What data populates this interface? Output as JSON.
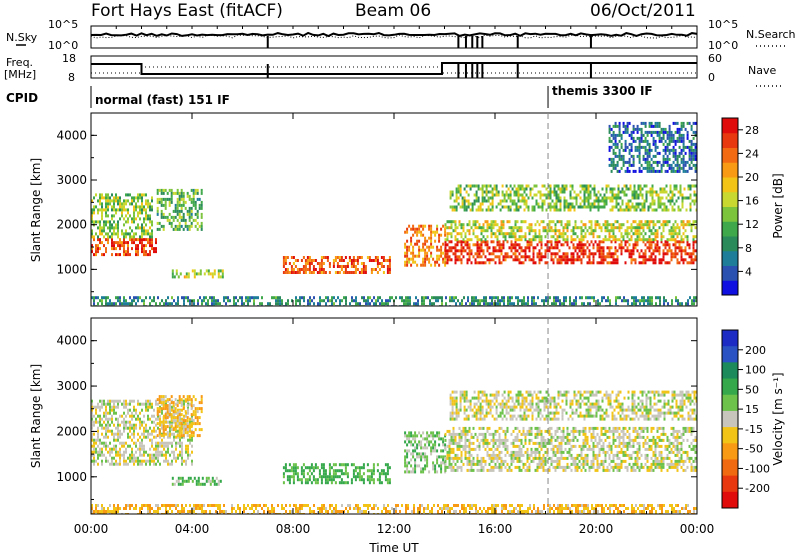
{
  "header": {
    "station": "Fort Hays East (fitACF)",
    "beam": "Beam 06",
    "date": "06/Oct/2011"
  },
  "noise_panel": {
    "left_label": "N.Sky",
    "right_label": "N.Search",
    "left_ticks": [
      "10^5",
      "10^0"
    ],
    "right_ticks": [
      "10^5",
      "10^0"
    ]
  },
  "freq_panel": {
    "left_label_1": "Freq.",
    "left_label_2": "[MHz]",
    "right_label": "Nave",
    "left_ticks": [
      "18",
      "8"
    ],
    "right_ticks": [
      "60",
      "0"
    ]
  },
  "cpid_panel": {
    "label": "CPID",
    "modes": [
      {
        "name": "normal (fast) 151 IF",
        "start_hour": 0
      },
      {
        "name": "themis 3300 IF",
        "start_hour": 18.1
      }
    ]
  },
  "time_axis": {
    "label": "Time UT",
    "ticks": [
      "00:00",
      "04:00",
      "08:00",
      "12:00",
      "16:00",
      "20:00",
      "00:00"
    ],
    "range_hours": [
      0,
      24
    ]
  },
  "range_axis": {
    "label": "Slant Range [km]",
    "ticks": [
      "1000",
      "2000",
      "3000",
      "4000"
    ],
    "range_km": [
      180,
      4500
    ]
  },
  "power_colorbar": {
    "label": "Power [dB]",
    "ticks": [
      "4",
      "8",
      "12",
      "16",
      "20",
      "24",
      "28"
    ],
    "range": [
      0,
      30
    ],
    "colors": [
      "#1010e0",
      "#2a50b0",
      "#1e7e9a",
      "#2a8a5a",
      "#3fa84a",
      "#7cc43c",
      "#c8d830",
      "#f2c418",
      "#f89a14",
      "#f26a12",
      "#e8380f",
      "#e00c0c"
    ]
  },
  "velocity_colorbar": {
    "label": "Velocity [m s⁻¹]",
    "ticks": [
      "200",
      "100",
      "50",
      "15",
      "-15",
      "-50",
      "-100",
      "-200"
    ],
    "colors": [
      "#1b2bc4",
      "#2a52c2",
      "#1c8a5a",
      "#34a84a",
      "#6cc24a",
      "#c8c6bc",
      "#f2c418",
      "#f89a14",
      "#f06a12",
      "#e8380f",
      "#e00c0c"
    ]
  },
  "chart_data": {
    "type": "heatmap",
    "title": "Fort Hays East (fitACF)",
    "xlabel": "Time UT",
    "ylabel": "Slant Range [km]",
    "xlim": [
      0,
      24
    ],
    "ylim": [
      180,
      4500
    ],
    "grid": false,
    "power_echo_regions": [
      {
        "t0": 0.0,
        "t1": 2.6,
        "r0": 1300,
        "r1": 1700,
        "power_db": 26
      },
      {
        "t0": 0.0,
        "t1": 2.4,
        "r0": 1700,
        "r1": 2700,
        "power_db": 14
      },
      {
        "t0": 2.6,
        "t1": 4.4,
        "r0": 1900,
        "r1": 2800,
        "power_db": 12
      },
      {
        "t0": 3.2,
        "t1": 5.2,
        "r0": 850,
        "r1": 1000,
        "power_db": 16
      },
      {
        "t0": 7.6,
        "t1": 11.8,
        "r0": 900,
        "r1": 1300,
        "power_db": 24
      },
      {
        "t0": 12.4,
        "t1": 14.0,
        "r0": 1100,
        "r1": 2000,
        "power_db": 22
      },
      {
        "t0": 14.0,
        "t1": 24.0,
        "r0": 1150,
        "r1": 1650,
        "power_db": 27
      },
      {
        "t0": 14.0,
        "t1": 24.0,
        "r0": 1650,
        "r1": 2100,
        "power_db": 16
      },
      {
        "t0": 14.2,
        "t1": 24.0,
        "r0": 2300,
        "r1": 2900,
        "power_db": 14
      },
      {
        "t0": 20.5,
        "t1": 24.0,
        "r0": 3200,
        "r1": 4300,
        "power_db": 6
      },
      {
        "t0": 0.0,
        "t1": 24.0,
        "r0": 180,
        "r1": 400,
        "power_db": 8
      }
    ],
    "velocity_echo_regions": [
      {
        "t0": 0.0,
        "t1": 4.0,
        "r0": 1300,
        "r1": 2700,
        "velocity": 0
      },
      {
        "t0": 2.6,
        "t1": 4.4,
        "r0": 1900,
        "r1": 2800,
        "velocity": -40
      },
      {
        "t0": 3.2,
        "t1": 5.2,
        "r0": 850,
        "r1": 1000,
        "velocity": 40
      },
      {
        "t0": 7.6,
        "t1": 11.8,
        "r0": 900,
        "r1": 1300,
        "velocity": 60
      },
      {
        "t0": 12.4,
        "t1": 14.0,
        "r0": 1100,
        "r1": 2000,
        "velocity": 30
      },
      {
        "t0": 14.0,
        "t1": 24.0,
        "r0": 1150,
        "r1": 2100,
        "velocity": 0
      },
      {
        "t0": 14.2,
        "t1": 24.0,
        "r0": 2300,
        "r1": 2900,
        "velocity": 0
      },
      {
        "t0": 0.0,
        "t1": 24.0,
        "r0": 180,
        "r1": 400,
        "velocity": -40
      }
    ]
  }
}
